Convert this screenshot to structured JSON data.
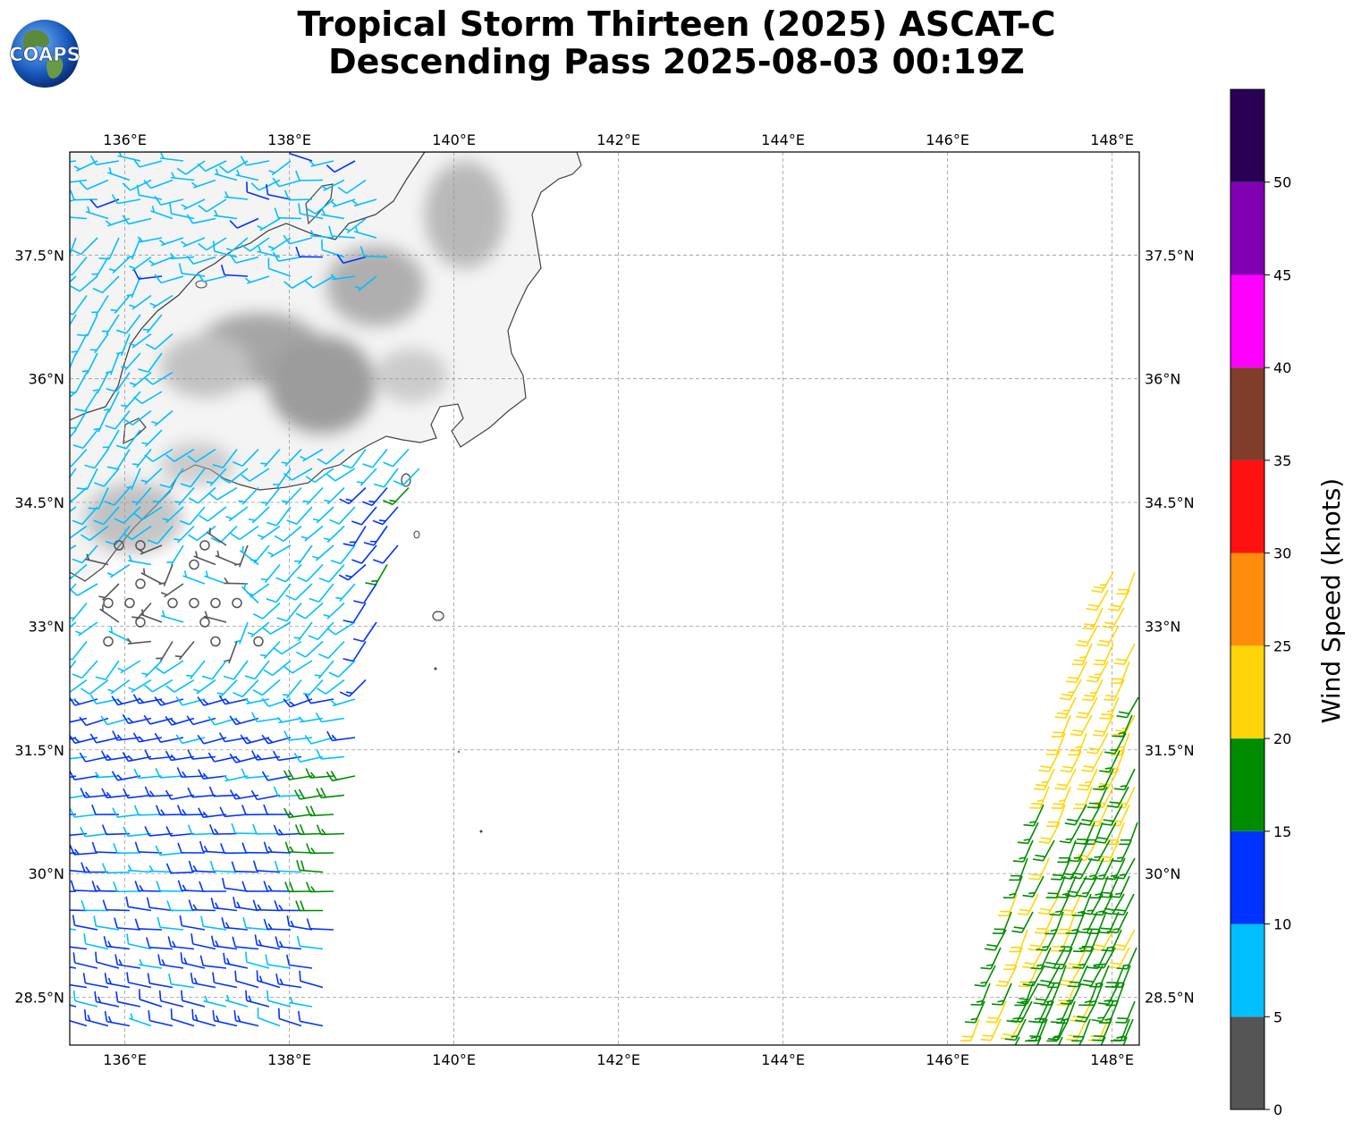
{
  "title": {
    "line1": "Tropical Storm Thirteen (2025) ASCAT-C",
    "line2": "Descending Pass 2025-08-03 00:19Z"
  },
  "logo": {
    "text": "COAPS"
  },
  "map": {
    "lon_range": [
      135.33,
      148.33
    ],
    "lat_range": [
      27.92,
      38.75
    ],
    "lon_ticks": [
      "136°E",
      "138°E",
      "140°E",
      "142°E",
      "144°E",
      "146°E",
      "148°E"
    ],
    "lat_ticks": [
      "37.5°N",
      "36°N",
      "34.5°N",
      "33°N",
      "31.5°N",
      "30°N",
      "28.5°N"
    ],
    "gridlines": true,
    "land_shading": "grayscale-terrain"
  },
  "colorbar": {
    "label": "Wind Speed (knots)",
    "ticks": [
      "0",
      "5",
      "10",
      "15",
      "20",
      "25",
      "30",
      "35",
      "40",
      "45",
      "50"
    ],
    "bins": [
      {
        "min": 0,
        "max": 5,
        "color": "#555555"
      },
      {
        "min": 5,
        "max": 10,
        "color": "#00bfff"
      },
      {
        "min": 10,
        "max": 15,
        "color": "#0033ff"
      },
      {
        "min": 15,
        "max": 20,
        "color": "#008c00"
      },
      {
        "min": 20,
        "max": 25,
        "color": "#ffd50a"
      },
      {
        "min": 25,
        "max": 30,
        "color": "#ff8c0a"
      },
      {
        "min": 30,
        "max": 35,
        "color": "#ff1111"
      },
      {
        "min": 35,
        "max": 40,
        "color": "#803d2a"
      },
      {
        "min": 40,
        "max": 45,
        "color": "#ff00ff"
      },
      {
        "min": 45,
        "max": 50,
        "color": "#8000b3"
      },
      {
        "min": 50,
        "max": 55,
        "color": "#2a0055"
      }
    ]
  }
}
